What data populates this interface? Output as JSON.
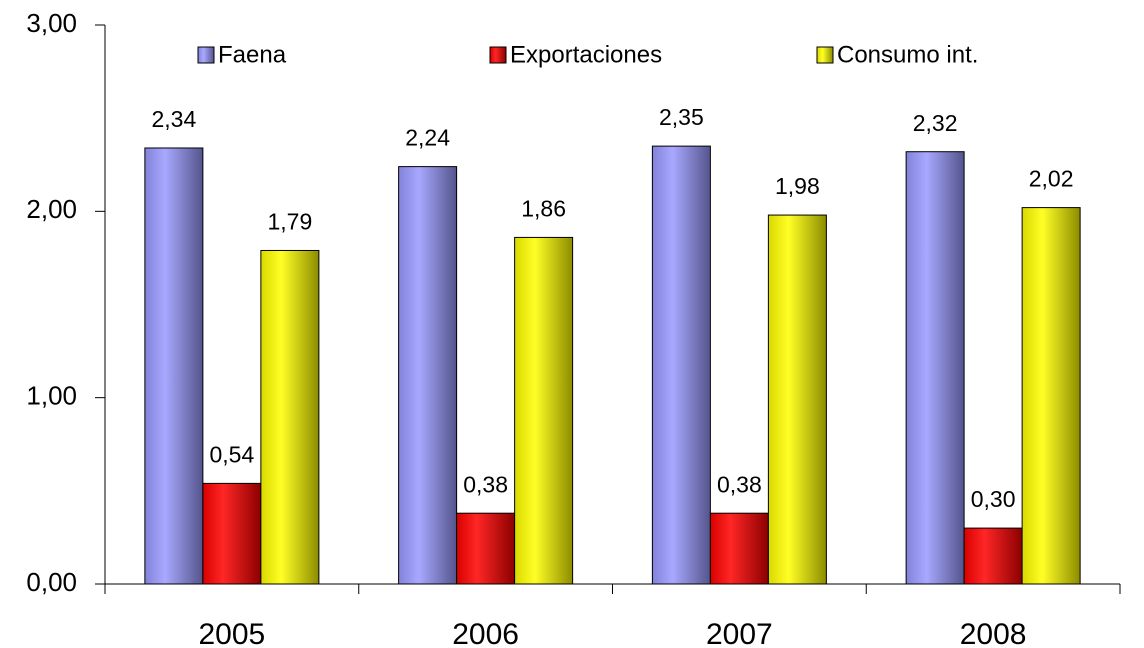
{
  "chart_data": {
    "type": "bar",
    "categories": [
      "2005",
      "2006",
      "2007",
      "2008"
    ],
    "series": [
      {
        "name": "Faena",
        "color": "#9999ff",
        "values": [
          2.34,
          2.24,
          2.35,
          2.32
        ],
        "value_labels": [
          "2,34",
          "2,24",
          "2,35",
          "2,32"
        ]
      },
      {
        "name": "Exportaciones",
        "color": "#ff0000",
        "values": [
          0.54,
          0.38,
          0.38,
          0.3
        ],
        "value_labels": [
          "0,54",
          "0,38",
          "0,38",
          "0,30"
        ]
      },
      {
        "name": "Consumo int.",
        "color": "#ffff00",
        "values": [
          1.79,
          1.86,
          1.98,
          2.02
        ],
        "value_labels": [
          "1,79",
          "1,86",
          "1,98",
          "2,02"
        ]
      }
    ],
    "ylim": [
      0,
      3
    ],
    "yticks": [
      {
        "value": 0,
        "label": "0,00"
      },
      {
        "value": 1,
        "label": "1,00"
      },
      {
        "value": 2,
        "label": "2,00"
      },
      {
        "value": 3,
        "label": "3,00"
      }
    ],
    "grid": false,
    "legend": "top"
  }
}
